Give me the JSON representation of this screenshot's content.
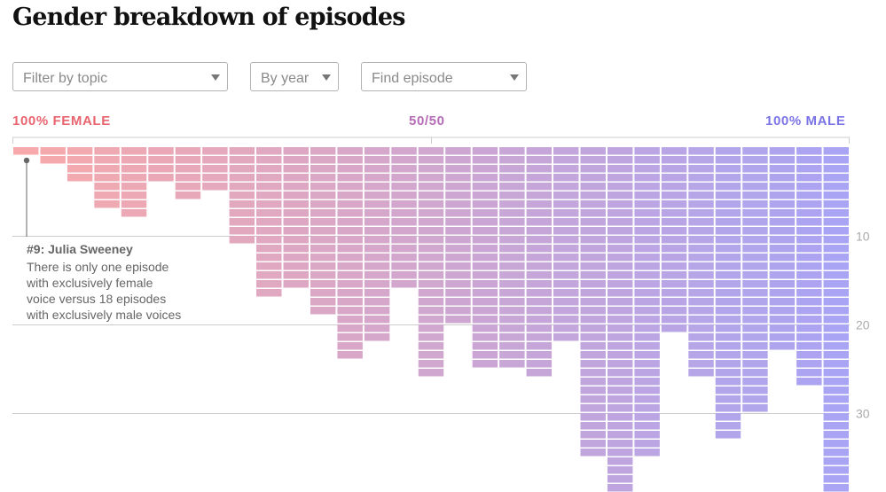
{
  "title": "Gender breakdown of episodes",
  "filters": {
    "topic_placeholder": "Filter by topic",
    "year_placeholder": "By year",
    "episode_placeholder": "Find episode"
  },
  "scale": {
    "left_label": "100% FEMALE",
    "mid_label": "50/50",
    "right_label": "100% MALE",
    "left_color": "#e8646e",
    "mid_color": "#b46cb6",
    "right_color": "#7b74e6"
  },
  "annotation": {
    "title": "#9: Julia Sweeney",
    "lines": [
      "There is only one episode",
      "with exclusively female",
      "voice versus 18 episodes",
      "with exclusively male voices"
    ]
  },
  "chart_data": {
    "type": "bar",
    "xlabel": "",
    "ylabel": "",
    "x_range": [
      "100% FEMALE",
      "100% MALE"
    ],
    "y_ticks": [
      10,
      20,
      30
    ],
    "ylim": [
      0,
      39
    ],
    "gradient": [
      "#f7a9ab",
      "#a9a4f3"
    ],
    "values": [
      1,
      2,
      4,
      7,
      8,
      4,
      6,
      5,
      11,
      17,
      16,
      19,
      24,
      22,
      16,
      26,
      20,
      25,
      25,
      26,
      22,
      35,
      39,
      35,
      21,
      26,
      33,
      30,
      23,
      27,
      39
    ]
  }
}
